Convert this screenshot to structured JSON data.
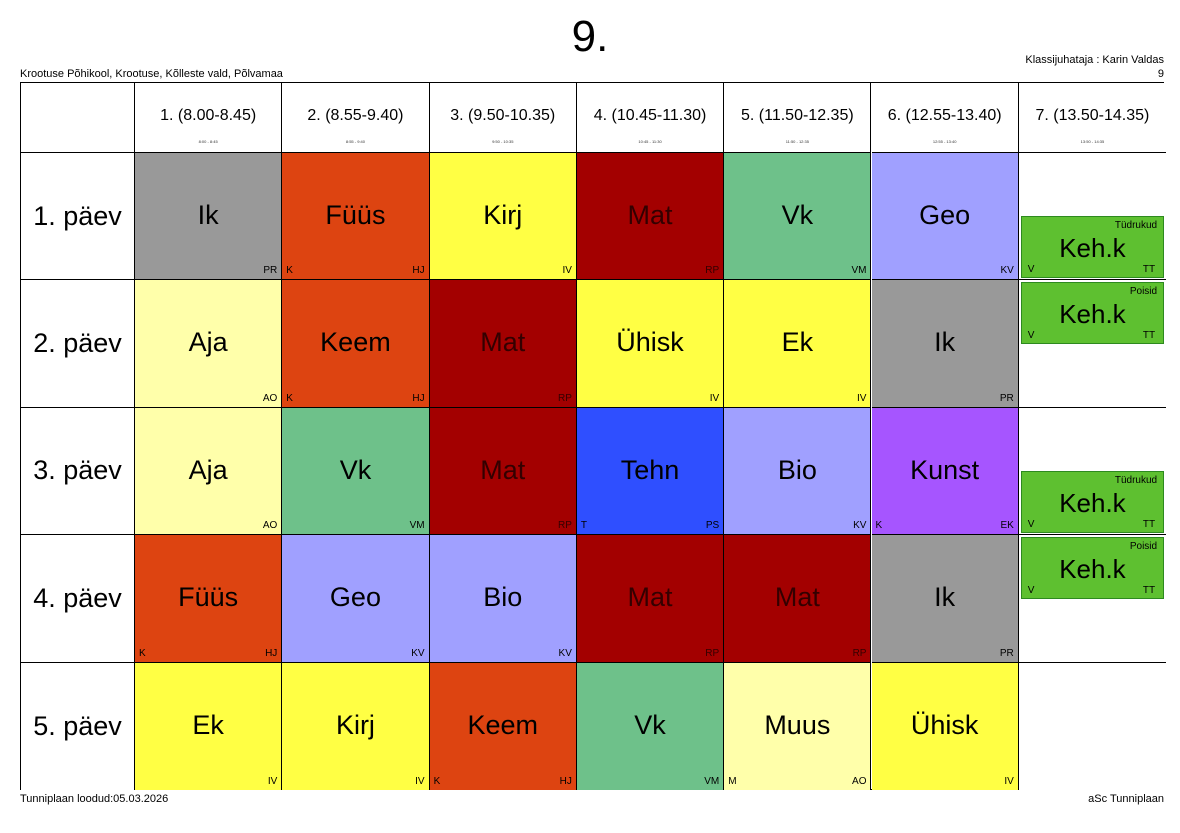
{
  "title": "9.",
  "school": "Krootuse Põhikool, Krootuse, Kõlleste vald, Põlvamaa",
  "class_teacher": "Klassijuhataja : Karin Valdas",
  "class_number": "9",
  "footer_left": "Tunniplaan loodud:05.03.2026",
  "footer_right": "aSc Tunniplaan",
  "colors": {
    "Ik": "#999999",
    "Füüs": "#dd4411",
    "Keem": "#dd4411",
    "Kirj": "#ffff44",
    "Ühisk": "#ffff44",
    "Ek": "#ffff44",
    "Mat": "#a30000",
    "Vk": "#6ec18a",
    "Geo": "#a0a0ff",
    "Bio": "#a0a0ff",
    "Aja": "#ffffaa",
    "Muus": "#ffffaa",
    "Tehn": "#2f4fff",
    "Kunst": "#a655ff",
    "Keh.k": "#5ec030"
  },
  "periods": [
    {
      "label": "1. (8.00-8.45)",
      "time": "8:00 - 8:45"
    },
    {
      "label": "2. (8.55-9.40)",
      "time": "8:55 - 9:40"
    },
    {
      "label": "3. (9.50-10.35)",
      "time": "9:50 - 10:35"
    },
    {
      "label": "4. (10.45-11.30)",
      "time": "10:45 - 11:30"
    },
    {
      "label": "5. (11.50-12.35)",
      "time": "11:50 - 12:35"
    },
    {
      "label": "6. (12.55-13.40)",
      "time": "12:55 - 13:40"
    },
    {
      "label": "7. (13.50-14.35)",
      "time": "13:50 - 14:35"
    }
  ],
  "days": [
    {
      "label": "1. päev",
      "lessons": [
        {
          "subject": "Ik",
          "teacher": "PR",
          "room": ""
        },
        {
          "subject": "Füüs",
          "teacher": "HJ",
          "room": "K"
        },
        {
          "subject": "Kirj",
          "teacher": "IV",
          "room": ""
        },
        {
          "subject": "Mat",
          "teacher": "RP",
          "room": ""
        },
        {
          "subject": "Vk",
          "teacher": "VM",
          "room": ""
        },
        {
          "subject": "Geo",
          "teacher": "KV",
          "room": ""
        }
      ],
      "group_lesson": {
        "position": "bottom",
        "group": "Tüdrukud",
        "subject": "Keh.k",
        "room": "V",
        "teacher": "TT"
      }
    },
    {
      "label": "2. päev",
      "lessons": [
        {
          "subject": "Aja",
          "teacher": "AO",
          "room": ""
        },
        {
          "subject": "Keem",
          "teacher": "HJ",
          "room": "K"
        },
        {
          "subject": "Mat",
          "teacher": "RP",
          "room": ""
        },
        {
          "subject": "Ühisk",
          "teacher": "IV",
          "room": ""
        },
        {
          "subject": "Ek",
          "teacher": "IV",
          "room": ""
        },
        {
          "subject": "Ik",
          "teacher": "PR",
          "room": ""
        }
      ],
      "group_lesson": {
        "position": "top",
        "group": "Poisid",
        "subject": "Keh.k",
        "room": "V",
        "teacher": "TT"
      }
    },
    {
      "label": "3. päev",
      "lessons": [
        {
          "subject": "Aja",
          "teacher": "AO",
          "room": ""
        },
        {
          "subject": "Vk",
          "teacher": "VM",
          "room": ""
        },
        {
          "subject": "Mat",
          "teacher": "RP",
          "room": ""
        },
        {
          "subject": "Tehn",
          "teacher": "PS",
          "room": "T"
        },
        {
          "subject": "Bio",
          "teacher": "KV",
          "room": ""
        },
        {
          "subject": "Kunst",
          "teacher": "EK",
          "room": "K"
        }
      ],
      "group_lesson": {
        "position": "bottom",
        "group": "Tüdrukud",
        "subject": "Keh.k",
        "room": "V",
        "teacher": "TT"
      }
    },
    {
      "label": "4. päev",
      "lessons": [
        {
          "subject": "Füüs",
          "teacher": "HJ",
          "room": "K"
        },
        {
          "subject": "Geo",
          "teacher": "KV",
          "room": ""
        },
        {
          "subject": "Bio",
          "teacher": "KV",
          "room": ""
        },
        {
          "subject": "Mat",
          "teacher": "RP",
          "room": ""
        },
        {
          "subject": "Mat",
          "teacher": "RP",
          "room": ""
        },
        {
          "subject": "Ik",
          "teacher": "PR",
          "room": ""
        }
      ],
      "group_lesson": {
        "position": "top",
        "group": "Poisid",
        "subject": "Keh.k",
        "room": "V",
        "teacher": "TT"
      }
    },
    {
      "label": "5. päev",
      "lessons": [
        {
          "subject": "Ek",
          "teacher": "IV",
          "room": ""
        },
        {
          "subject": "Kirj",
          "teacher": "IV",
          "room": ""
        },
        {
          "subject": "Keem",
          "teacher": "HJ",
          "room": "K"
        },
        {
          "subject": "Vk",
          "teacher": "VM",
          "room": ""
        },
        {
          "subject": "Muus",
          "teacher": "AO",
          "room": "M"
        },
        {
          "subject": "Ühisk",
          "teacher": "IV",
          "room": ""
        }
      ],
      "group_lesson": null
    }
  ]
}
